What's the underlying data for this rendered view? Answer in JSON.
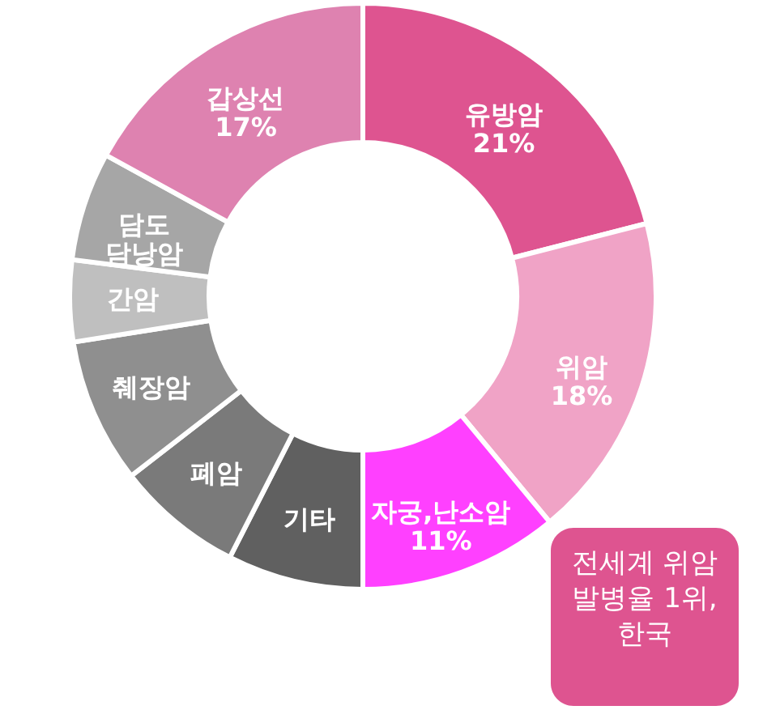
{
  "chart_data": {
    "type": "donut",
    "categories": [
      "유방암",
      "위암",
      "자궁,난소암",
      "기타",
      "폐암",
      "췌장암",
      "간암",
      "담도\n담낭암",
      "갑상선"
    ],
    "values": [
      21,
      18,
      11,
      7.5,
      7,
      8,
      4.5,
      6,
      17
    ],
    "value_labels": [
      "21%",
      "18%",
      "11%",
      null,
      null,
      null,
      null,
      null,
      "17%"
    ],
    "colors": [
      "#de5490",
      "#f0a3c6",
      "#ff40ff",
      "#606060",
      "#7a7a7a",
      "#8f8f8f",
      "#bfbfbf",
      "#a6a6a6",
      "#de82b0"
    ],
    "annotations": [
      "전세계 위암\n발병율 1위,\n한국"
    ]
  }
}
